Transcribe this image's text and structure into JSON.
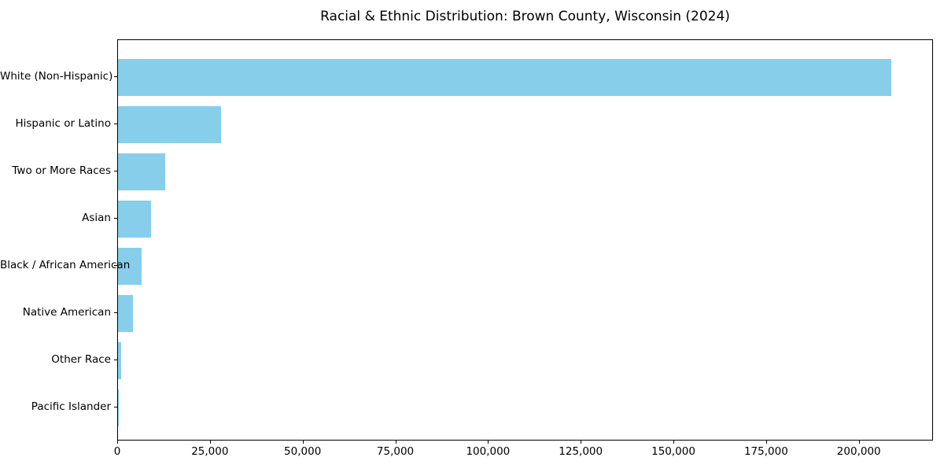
{
  "chart_data": {
    "type": "bar",
    "orientation": "horizontal",
    "title": "Racial & Ethnic Distribution: Brown County, Wisconsin (2024)",
    "categories": [
      "White (Non-Hispanic)",
      "Hispanic or Latino",
      "Two or More Races",
      "Asian",
      "Black / African American",
      "Native American",
      "Other Race",
      "Pacific Islander"
    ],
    "values": [
      209000,
      27800,
      12700,
      8900,
      6400,
      4100,
      900,
      150
    ],
    "xlabel": "",
    "ylabel": "",
    "xlim": [
      0,
      220000
    ],
    "xticks": [
      0,
      25000,
      50000,
      75000,
      100000,
      125000,
      150000,
      175000,
      200000
    ],
    "xtick_labels": [
      "0",
      "25,000",
      "50,000",
      "75,000",
      "100,000",
      "125,000",
      "150,000",
      "175,000",
      "200,000"
    ],
    "bar_color": "#87CEEB",
    "background_color": "#FFFFFF",
    "axis_color": "#000000",
    "grid": false,
    "legend": null
  }
}
